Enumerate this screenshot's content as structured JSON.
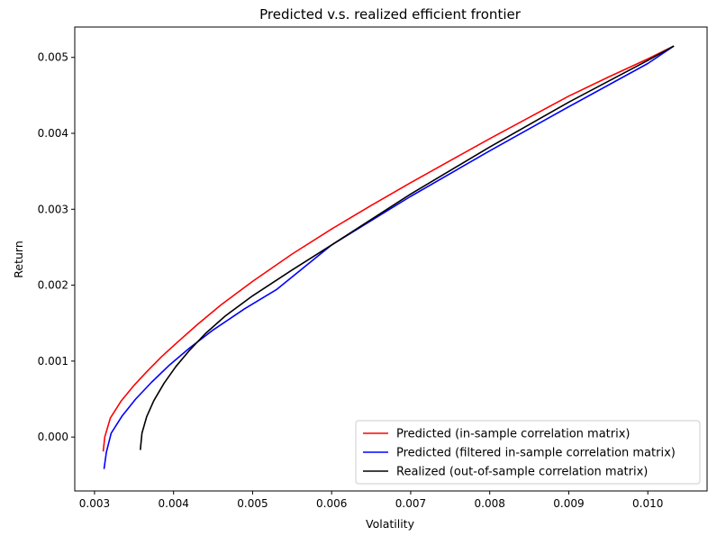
{
  "chart_data": {
    "type": "line",
    "title": "Predicted v.s. realized efficient frontier",
    "xlabel": "Volatility",
    "ylabel": "Return",
    "xlim": [
      0.00275,
      0.01075
    ],
    "ylim": [
      -0.00071,
      0.0054
    ],
    "xticks": [
      0.003,
      0.004,
      0.005,
      0.006,
      0.007,
      0.008,
      0.009,
      0.01
    ],
    "xtick_labels": [
      "0.003",
      "0.004",
      "0.005",
      "0.006",
      "0.007",
      "0.008",
      "0.009",
      "0.010"
    ],
    "yticks": [
      0.0,
      0.001,
      0.002,
      0.003,
      0.004,
      0.005
    ],
    "ytick_labels": [
      "0.000",
      "0.001",
      "0.002",
      "0.003",
      "0.004",
      "0.005"
    ],
    "grid": false,
    "legend_position": "lower-right",
    "series": [
      {
        "name": "Predicted (in-sample correlation matrix)",
        "color": "#ff0000",
        "x": [
          0.00311,
          0.00313,
          0.0032,
          0.00334,
          0.0035,
          0.00367,
          0.00385,
          0.00405,
          0.0043,
          0.0046,
          0.005,
          0.0055,
          0.006,
          0.0065,
          0.007,
          0.0075,
          0.008,
          0.0085,
          0.009,
          0.0095,
          0.01,
          0.01033
        ],
        "y": [
          -0.00019,
          0.0,
          0.00025,
          0.00048,
          0.00068,
          0.00087,
          0.00106,
          0.00125,
          0.00148,
          0.00174,
          0.00205,
          0.00241,
          0.00274,
          0.00305,
          0.00335,
          0.00364,
          0.00393,
          0.00421,
          0.00449,
          0.00474,
          0.00498,
          0.00515
        ]
      },
      {
        "name": "Predicted (filtered in-sample correlation matrix)",
        "color": "#0000ff",
        "x": [
          0.00312,
          0.00315,
          0.00321,
          0.00335,
          0.00352,
          0.00372,
          0.00395,
          0.0042,
          0.0045,
          0.0049,
          0.0053,
          0.006,
          0.007,
          0.008,
          0.009,
          0.01,
          0.01033
        ],
        "y": [
          -0.00042,
          -0.0002,
          5e-05,
          0.00028,
          0.0005,
          0.00072,
          0.00095,
          0.00117,
          0.00141,
          0.00169,
          0.00194,
          0.00253,
          0.00317,
          0.00377,
          0.00435,
          0.00492,
          0.00515
        ]
      },
      {
        "name": "Realized (out-of-sample correlation matrix)",
        "color": "#000000",
        "x": [
          0.00358,
          0.0036,
          0.00366,
          0.00375,
          0.00388,
          0.00403,
          0.0042,
          0.0044,
          0.00465,
          0.005,
          0.0055,
          0.006,
          0.007,
          0.008,
          0.009,
          0.01,
          0.01033
        ],
        "y": [
          -0.00017,
          5e-05,
          0.00027,
          0.00048,
          0.00071,
          0.00093,
          0.00114,
          0.00136,
          0.00159,
          0.00186,
          0.0022,
          0.00253,
          0.0032,
          0.00382,
          0.00441,
          0.00496,
          0.00515
        ]
      }
    ]
  }
}
